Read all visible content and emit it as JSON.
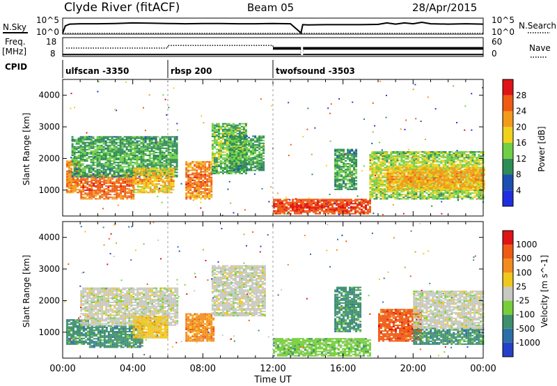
{
  "header": {
    "station": "Clyde River (fitACF)",
    "beam": "Beam 05",
    "date": "28/Apr/2015"
  },
  "chart_data": [
    {
      "type": "line",
      "panel": "noise",
      "labels": {
        "left": "N.Sky",
        "right": "N.Search"
      },
      "left_ticks": [
        "10^5",
        "10^0"
      ],
      "right_ticks": [
        "10^5",
        "10^0"
      ],
      "x_range_hours": [
        0,
        24
      ],
      "series": [
        {
          "name": "N.Sky",
          "x": [
            0.0,
            0.15,
            0.4,
            1.0,
            2.0,
            3.0,
            4.0,
            5.0,
            6.0,
            7.0,
            8.0,
            9.0,
            10.0,
            11.0,
            12.0,
            13.0,
            13.6,
            13.7,
            14.0,
            15.0,
            16.0,
            17.0,
            18.0,
            18.5,
            19.0,
            19.5,
            20.0,
            20.5,
            21.0,
            22.0,
            23.0,
            24.0
          ],
          "y_log10": [
            0.1,
            2.6,
            3.2,
            3.3,
            3.3,
            3.4,
            3.6,
            3.5,
            3.4,
            3.3,
            3.4,
            3.4,
            3.3,
            3.3,
            3.4,
            3.3,
            0.2,
            3.0,
            2.9,
            3.0,
            3.0,
            3.0,
            3.1,
            3.6,
            3.2,
            3.6,
            3.3,
            3.8,
            3.3,
            3.2,
            3.3,
            3.2
          ]
        },
        {
          "name": "N.Search",
          "x": [
            0,
            24
          ],
          "y_log10": [
            0.1,
            0.1
          ]
        }
      ]
    },
    {
      "type": "line",
      "panel": "frequency",
      "labels": {
        "left_top": "Freq.",
        "left_bottom": "[MHz]",
        "right": "Nave"
      },
      "left_ticks": [
        "18",
        "8"
      ],
      "right_ticks": [
        "60",
        "0"
      ],
      "x_range_hours": [
        0,
        24
      ],
      "series": [
        {
          "name": "Freq.",
          "x": [
            0,
            6,
            6,
            12,
            12,
            24
          ],
          "y": [
            8.3,
            8.3,
            8.3,
            8.3,
            8.3,
            8.3
          ]
        },
        {
          "name": "Nave",
          "x": [
            0.2,
            6.0,
            6.0,
            12.0,
            12.0,
            13.6,
            13.6,
            13.8,
            24.0
          ],
          "y": [
            26,
            26,
            36,
            36,
            28,
            28,
            0,
            28,
            28
          ]
        }
      ]
    },
    {
      "type": "table",
      "panel": "cpid",
      "label": "CPID",
      "segments": [
        {
          "name": "ulfscan -3350",
          "start_hour": 0,
          "end_hour": 6
        },
        {
          "name": "rbsp 200",
          "start_hour": 6,
          "end_hour": 12
        },
        {
          "name": "twofsound -3503",
          "start_hour": 12,
          "end_hour": 24
        }
      ]
    },
    {
      "type": "heatmap",
      "panel": "power",
      "ylabel": "Slant Range [km]",
      "xlim": [
        0,
        24
      ],
      "ylim": [
        180,
        4500
      ],
      "yticks": [
        1000,
        2000,
        3000,
        4000
      ],
      "colorbar": {
        "label": "Power [dB]",
        "ticks": [
          "4",
          "8",
          "12",
          "16",
          "20",
          "24",
          "28"
        ],
        "colors": [
          "#1f2fe0",
          "#1d4fb0",
          "#2e8c55",
          "#6fcf45",
          "#f0d21c",
          "#f39a1c",
          "#ef5a14",
          "#e01414"
        ]
      },
      "bands": [
        {
          "start": 0.2,
          "end": 1.0,
          "low": 900,
          "high": 1900,
          "level": 22,
          "spread": 6
        },
        {
          "start": 1.0,
          "end": 4.0,
          "low": 700,
          "high": 1500,
          "level": 24,
          "spread": 6
        },
        {
          "start": 0.5,
          "end": 6.5,
          "low": 1400,
          "high": 2700,
          "level": 10,
          "spread": 6
        },
        {
          "start": 4.0,
          "end": 6.3,
          "low": 900,
          "high": 1700,
          "level": 18,
          "spread": 8
        },
        {
          "start": 7.0,
          "end": 8.5,
          "low": 700,
          "high": 1900,
          "level": 22,
          "spread": 8
        },
        {
          "start": 8.5,
          "end": 10.5,
          "low": 1500,
          "high": 3100,
          "level": 12,
          "spread": 8
        },
        {
          "start": 9.5,
          "end": 11.5,
          "low": 1600,
          "high": 2700,
          "level": 10,
          "spread": 6
        },
        {
          "start": 12.0,
          "end": 17.5,
          "low": 230,
          "high": 700,
          "level": 26,
          "spread": 5
        },
        {
          "start": 15.5,
          "end": 16.8,
          "low": 1000,
          "high": 2300,
          "level": 10,
          "spread": 6
        },
        {
          "start": 17.5,
          "end": 24.0,
          "low": 700,
          "high": 2200,
          "level": 14,
          "spread": 8
        },
        {
          "start": 18.5,
          "end": 24.0,
          "low": 1000,
          "high": 1700,
          "level": 20,
          "spread": 6
        }
      ]
    },
    {
      "type": "heatmap",
      "panel": "velocity",
      "ylabel": "Slant Range [km]",
      "xlim": [
        0,
        24
      ],
      "ylim": [
        180,
        4500
      ],
      "yticks": [
        1000,
        2000,
        3000,
        4000
      ],
      "xticks": [
        "00:00",
        "04:00",
        "08:00",
        "12:00",
        "16:00",
        "20:00",
        "00:00"
      ],
      "xlabel": "Time UT",
      "colorbar": {
        "label": "Velocity [m s^-1]",
        "ticks": [
          "1000",
          "500",
          "100",
          "25",
          "-25",
          "-100",
          "-500",
          "-1000"
        ],
        "colors": [
          "#2541c8",
          "#2c6fa8",
          "#3e8f6d",
          "#76cf3a",
          "#c8c8c2",
          "#f0c81c",
          "#f28c1c",
          "#ef5a14",
          "#e01414"
        ]
      },
      "bands": [
        {
          "start": 0.2,
          "end": 1.5,
          "low": 600,
          "high": 1400,
          "level": 2,
          "spread": 1
        },
        {
          "start": 1.5,
          "end": 4.5,
          "low": 500,
          "high": 1200,
          "level": 2,
          "spread": 1
        },
        {
          "start": 1.0,
          "end": 6.5,
          "low": 1200,
          "high": 2400,
          "level": 4,
          "spread": 1
        },
        {
          "start": 4.0,
          "end": 6.0,
          "low": 800,
          "high": 1500,
          "level": 5,
          "spread": 1
        },
        {
          "start": 7.0,
          "end": 8.6,
          "low": 700,
          "high": 1600,
          "level": 6,
          "spread": 1
        },
        {
          "start": 8.5,
          "end": 11.5,
          "low": 1500,
          "high": 3100,
          "level": 4,
          "spread": 1
        },
        {
          "start": 12.0,
          "end": 17.5,
          "low": 230,
          "high": 800,
          "level": 3,
          "spread": 1
        },
        {
          "start": 15.5,
          "end": 17.0,
          "low": 1000,
          "high": 2400,
          "level": 2,
          "spread": 1
        },
        {
          "start": 18.0,
          "end": 20.5,
          "low": 700,
          "high": 1700,
          "level": 7,
          "spread": 1
        },
        {
          "start": 20.0,
          "end": 24.0,
          "low": 600,
          "high": 1100,
          "level": 2,
          "spread": 1
        },
        {
          "start": 20.0,
          "end": 24.0,
          "low": 1100,
          "high": 2300,
          "level": 4,
          "spread": 1
        }
      ]
    }
  ]
}
